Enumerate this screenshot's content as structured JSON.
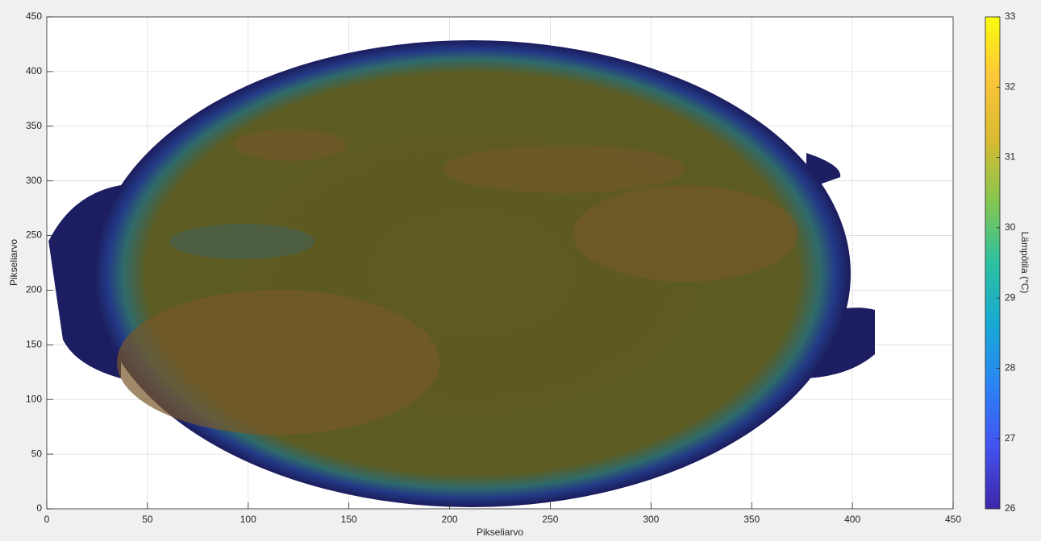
{
  "chart_data": {
    "type": "heatmap",
    "xlabel": "Pikseliarvo",
    "ylabel": "Pikseliarvo",
    "xlim": [
      0,
      450
    ],
    "ylim": [
      0,
      450
    ],
    "xticks": [
      0,
      50,
      100,
      150,
      200,
      250,
      300,
      350,
      400,
      450
    ],
    "yticks": [
      0,
      50,
      100,
      150,
      200,
      250,
      300,
      350,
      400,
      450
    ],
    "grid": true,
    "colorbar": {
      "label": "Lämpötila (°C)",
      "clim": [
        26,
        33
      ],
      "ticks": [
        26,
        27,
        28,
        29,
        30,
        31,
        32,
        33
      ],
      "colormap": "parula"
    }
  }
}
